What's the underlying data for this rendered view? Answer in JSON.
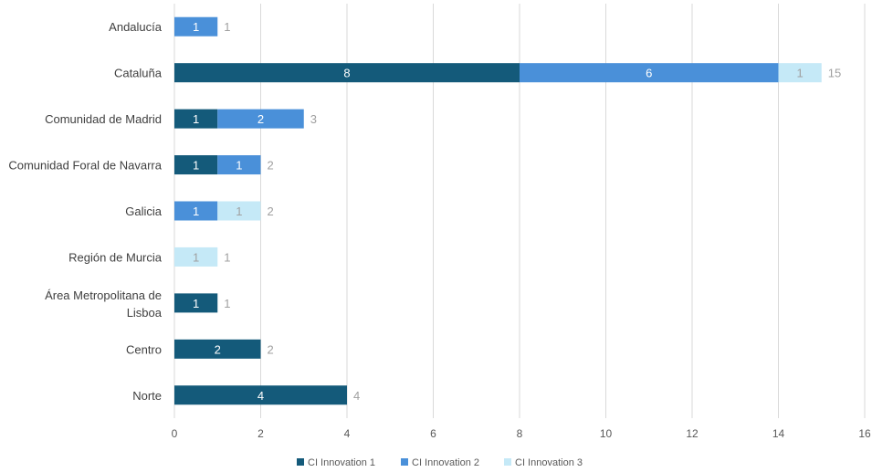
{
  "chart_data": {
    "type": "bar",
    "orientation": "horizontal",
    "stacked": true,
    "categories": [
      "Andalucía",
      "Cataluña",
      "Comunidad de Madrid",
      "Comunidad Foral de Navarra",
      "Galicia",
      "Región de Murcia",
      "Área Metropolitana de Lisboa",
      "Centro",
      "Norte"
    ],
    "series": [
      {
        "name": "CI Innovation 1",
        "color": "#145A7A",
        "label_color": "#ffffff",
        "values": [
          0,
          8,
          1,
          1,
          0,
          0,
          1,
          2,
          4
        ]
      },
      {
        "name": "CI Innovation 2",
        "color": "#4A90D9",
        "label_color": "#ffffff",
        "values": [
          1,
          6,
          2,
          1,
          1,
          0,
          0,
          0,
          0
        ]
      },
      {
        "name": "CI Innovation 3",
        "color": "#C5E9F7",
        "label_color": "#A0A0A0",
        "values": [
          0,
          1,
          0,
          0,
          1,
          1,
          0,
          0,
          0
        ]
      }
    ],
    "totals": [
      1,
      15,
      3,
      2,
      2,
      1,
      1,
      2,
      4
    ],
    "xlim": [
      0,
      16
    ],
    "xticks": [
      0,
      2,
      4,
      6,
      8,
      10,
      12,
      14,
      16
    ],
    "grid": true,
    "legend_position": "bottom",
    "total_label_color": "#A0A0A0"
  }
}
